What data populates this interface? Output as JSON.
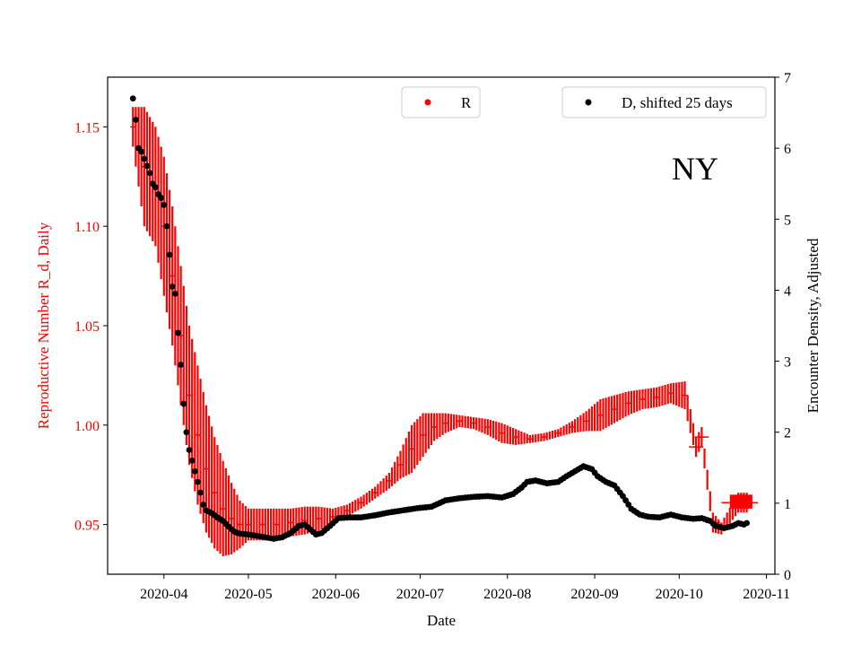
{
  "chart_data": {
    "type": "scatter",
    "annotation": "NY",
    "xlabel": "Date",
    "ylabel_left": "Reproductive Number R_d, Daily",
    "ylabel_right": "Encounter Density, Adjusted",
    "x_ticks": [
      "2020-04",
      "2020-05",
      "2020-06",
      "2020-07",
      "2020-08",
      "2020-09",
      "2020-10",
      "2020-11"
    ],
    "y_left_ticks": [
      "0.95",
      "1.00",
      "1.05",
      "1.10",
      "1.15"
    ],
    "y_right_ticks": [
      "0",
      "1",
      "2",
      "3",
      "4",
      "5",
      "6",
      "7"
    ],
    "xlim": [
      "2020-03-12",
      "2020-11-04"
    ],
    "ylim_left": [
      0.925,
      1.175
    ],
    "ylim_right": [
      0,
      7
    ],
    "legend": {
      "r_label": "R",
      "d_label": "D, shifted 25 days",
      "r_placement": "top-center",
      "d_placement": "top-right"
    },
    "colors": {
      "r": "#ff0000",
      "d": "#000000",
      "left_axis_text": "#ff0000"
    },
    "series_R": {
      "name": "R",
      "points": [
        [
          "2020-03-21",
          1.15,
          0.01
        ],
        [
          "2020-03-25",
          1.13,
          0.03
        ],
        [
          "2020-03-29",
          1.12,
          0.03
        ],
        [
          "2020-04-01",
          1.1,
          0.035
        ],
        [
          "2020-04-04",
          1.075,
          0.035
        ],
        [
          "2020-04-07",
          1.045,
          0.035
        ],
        [
          "2020-04-10",
          1.015,
          0.035
        ],
        [
          "2020-04-13",
          0.995,
          0.035
        ],
        [
          "2020-04-16",
          0.978,
          0.032
        ],
        [
          "2020-04-19",
          0.966,
          0.028
        ],
        [
          "2020-04-22",
          0.958,
          0.024
        ],
        [
          "2020-04-25",
          0.953,
          0.018
        ],
        [
          "2020-04-28",
          0.95,
          0.012
        ],
        [
          "2020-05-01",
          0.95,
          0.008
        ],
        [
          "2020-05-06",
          0.95,
          0.008
        ],
        [
          "2020-05-11",
          0.95,
          0.008
        ],
        [
          "2020-05-16",
          0.951,
          0.007
        ],
        [
          "2020-05-21",
          0.952,
          0.007
        ],
        [
          "2020-05-26",
          0.953,
          0.006
        ],
        [
          "2020-05-31",
          0.954,
          0.004
        ],
        [
          "2020-06-05",
          0.957,
          0.003
        ],
        [
          "2020-06-10",
          0.961,
          0.003
        ],
        [
          "2020-06-15",
          0.966,
          0.003
        ],
        [
          "2020-06-20",
          0.972,
          0.004
        ],
        [
          "2020-06-24",
          0.98,
          0.007
        ],
        [
          "2020-06-28",
          0.988,
          0.012
        ],
        [
          "2020-07-02",
          0.995,
          0.011
        ],
        [
          "2020-07-06",
          0.999,
          0.007
        ],
        [
          "2020-07-10",
          1.001,
          0.005
        ],
        [
          "2020-07-15",
          1.002,
          0.003
        ],
        [
          "2020-07-20",
          1.001,
          0.003
        ],
        [
          "2020-07-25",
          0.999,
          0.004
        ],
        [
          "2020-07-30",
          0.996,
          0.005
        ],
        [
          "2020-08-04",
          0.994,
          0.004
        ],
        [
          "2020-08-09",
          0.993,
          0.002
        ],
        [
          "2020-08-14",
          0.994,
          0.002
        ],
        [
          "2020-08-19",
          0.996,
          0.002
        ],
        [
          "2020-08-24",
          0.999,
          0.003
        ],
        [
          "2020-08-29",
          1.002,
          0.005
        ],
        [
          "2020-09-03",
          1.005,
          0.008
        ],
        [
          "2020-09-08",
          1.008,
          0.007
        ],
        [
          "2020-09-13",
          1.011,
          0.006
        ],
        [
          "2020-09-18",
          1.013,
          0.005
        ],
        [
          "2020-09-23",
          1.014,
          0.005
        ],
        [
          "2020-09-28",
          1.016,
          0.005
        ],
        [
          "2020-10-03",
          1.015,
          0.007
        ],
        [
          "2020-10-07",
          0.989,
          0.005
        ],
        [
          "2020-10-09",
          0.994,
          0.005
        ],
        [
          "2020-10-13",
          0.951,
          0.005
        ],
        [
          "2020-10-16",
          0.948,
          0.003
        ],
        [
          "2020-10-22",
          0.961,
          0.005
        ],
        [
          "2020-10-25",
          0.961,
          0.005
        ]
      ]
    },
    "series_D": {
      "name": "D, shifted 25 days",
      "points": [
        [
          "2020-03-21",
          6.7
        ],
        [
          "2020-03-22",
          6.4
        ],
        [
          "2020-03-23",
          6.0
        ],
        [
          "2020-03-24",
          5.95
        ],
        [
          "2020-03-25",
          5.85
        ],
        [
          "2020-03-26",
          5.75
        ],
        [
          "2020-03-27",
          5.65
        ],
        [
          "2020-03-28",
          5.5
        ],
        [
          "2020-03-29",
          5.45
        ],
        [
          "2020-03-30",
          5.35
        ],
        [
          "2020-03-31",
          5.3
        ],
        [
          "2020-04-01",
          5.2
        ],
        [
          "2020-04-02",
          4.9
        ],
        [
          "2020-04-03",
          4.5
        ],
        [
          "2020-04-04",
          4.05
        ],
        [
          "2020-04-05",
          3.95
        ],
        [
          "2020-04-06",
          3.4
        ],
        [
          "2020-04-07",
          2.95
        ],
        [
          "2020-04-08",
          2.4
        ],
        [
          "2020-04-09",
          2.0
        ],
        [
          "2020-04-10",
          1.75
        ],
        [
          "2020-04-11",
          1.6
        ],
        [
          "2020-04-12",
          1.45
        ],
        [
          "2020-04-13",
          1.3
        ],
        [
          "2020-04-14",
          1.15
        ],
        [
          "2020-04-15",
          0.98
        ],
        [
          "2020-04-16",
          0.9
        ],
        [
          "2020-04-18",
          0.86
        ],
        [
          "2020-04-20",
          0.8
        ],
        [
          "2020-04-22",
          0.75
        ],
        [
          "2020-04-24",
          0.67
        ],
        [
          "2020-04-26",
          0.6
        ],
        [
          "2020-04-28",
          0.57
        ],
        [
          "2020-05-01",
          0.56
        ],
        [
          "2020-05-04",
          0.54
        ],
        [
          "2020-05-07",
          0.52
        ],
        [
          "2020-05-10",
          0.5
        ],
        [
          "2020-05-13",
          0.52
        ],
        [
          "2020-05-16",
          0.58
        ],
        [
          "2020-05-19",
          0.68
        ],
        [
          "2020-05-21",
          0.7
        ],
        [
          "2020-05-23",
          0.63
        ],
        [
          "2020-05-25",
          0.56
        ],
        [
          "2020-05-27",
          0.58
        ],
        [
          "2020-05-30",
          0.68
        ],
        [
          "2020-06-02",
          0.79
        ],
        [
          "2020-06-06",
          0.8
        ],
        [
          "2020-06-10",
          0.8
        ],
        [
          "2020-06-15",
          0.83
        ],
        [
          "2020-06-20",
          0.87
        ],
        [
          "2020-06-25",
          0.9
        ],
        [
          "2020-06-30",
          0.93
        ],
        [
          "2020-07-05",
          0.95
        ],
        [
          "2020-07-10",
          1.04
        ],
        [
          "2020-07-15",
          1.07
        ],
        [
          "2020-07-20",
          1.09
        ],
        [
          "2020-07-25",
          1.1
        ],
        [
          "2020-07-30",
          1.08
        ],
        [
          "2020-08-03",
          1.13
        ],
        [
          "2020-08-06",
          1.22
        ],
        [
          "2020-08-08",
          1.3
        ],
        [
          "2020-08-11",
          1.32
        ],
        [
          "2020-08-15",
          1.28
        ],
        [
          "2020-08-19",
          1.3
        ],
        [
          "2020-08-22",
          1.38
        ],
        [
          "2020-08-25",
          1.45
        ],
        [
          "2020-08-28",
          1.52
        ],
        [
          "2020-08-31",
          1.48
        ],
        [
          "2020-09-02",
          1.38
        ],
        [
          "2020-09-05",
          1.3
        ],
        [
          "2020-09-08",
          1.25
        ],
        [
          "2020-09-11",
          1.1
        ],
        [
          "2020-09-14",
          0.92
        ],
        [
          "2020-09-17",
          0.84
        ],
        [
          "2020-09-20",
          0.81
        ],
        [
          "2020-09-24",
          0.8
        ],
        [
          "2020-09-28",
          0.84
        ],
        [
          "2020-10-02",
          0.8
        ],
        [
          "2020-10-06",
          0.78
        ],
        [
          "2020-10-09",
          0.79
        ],
        [
          "2020-10-12",
          0.75
        ],
        [
          "2020-10-14",
          0.68
        ],
        [
          "2020-10-17",
          0.65
        ],
        [
          "2020-10-20",
          0.68
        ],
        [
          "2020-10-22",
          0.72
        ],
        [
          "2020-10-24",
          0.7
        ],
        [
          "2020-10-25",
          0.72
        ]
      ]
    }
  }
}
